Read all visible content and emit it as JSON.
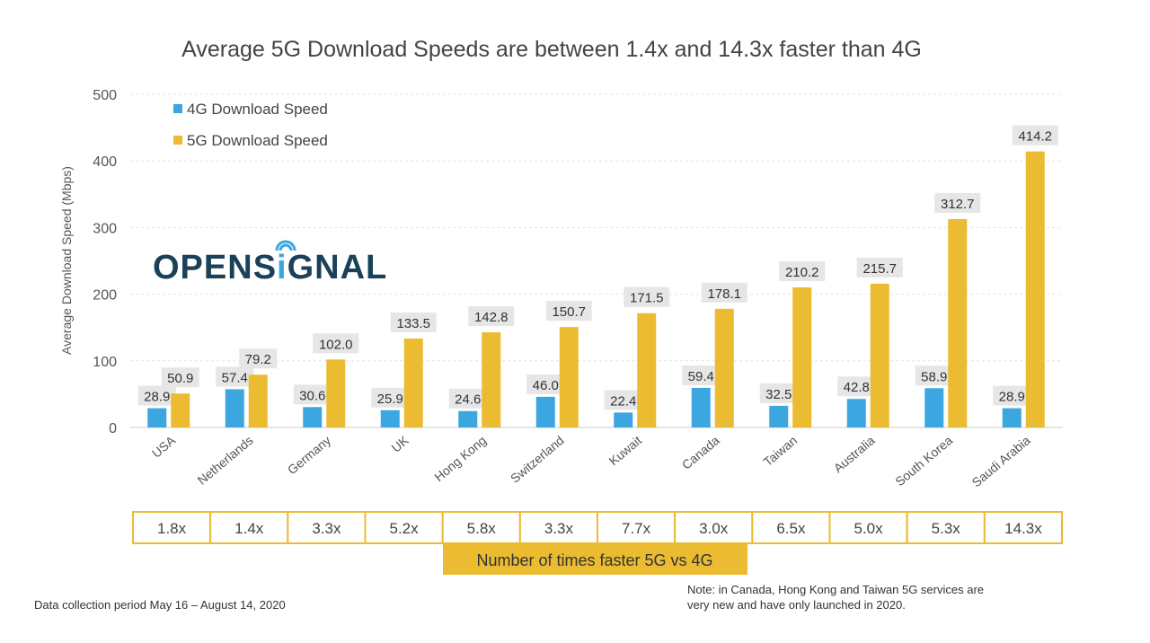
{
  "chart_data": {
    "type": "bar",
    "title": "Average 5G Download Speeds are between 1.4x and 14.3x faster than 4G",
    "ylabel": "Average Download Speed (Mbps)",
    "xlabel": "",
    "ylim": [
      0,
      500
    ],
    "yticks": [
      0,
      100,
      200,
      300,
      400,
      500
    ],
    "grid": true,
    "legend_placement": "top-left",
    "categories": [
      "USA",
      "Netherlands",
      "Germany",
      "UK",
      "Hong Kong",
      "Switzerland",
      "Kuwait",
      "Canada",
      "Taiwan",
      "Australia",
      "South Korea",
      "Saudi Arabia"
    ],
    "series": [
      {
        "name": "4G Download Speed",
        "color": "#3ba6df",
        "values": [
          28.9,
          57.4,
          30.6,
          25.9,
          24.6,
          46.0,
          22.4,
          59.4,
          32.5,
          42.8,
          58.9,
          28.9
        ]
      },
      {
        "name": "5G Download Speed",
        "color": "#ebbb32",
        "values": [
          50.9,
          79.2,
          102.0,
          133.5,
          142.8,
          150.7,
          171.5,
          178.1,
          210.2,
          215.7,
          312.7,
          414.2
        ]
      }
    ],
    "ratios": [
      "1.8x",
      "1.4x",
      "3.3x",
      "5.2x",
      "5.8x",
      "3.3x",
      "7.7x",
      "3.0x",
      "6.5x",
      "5.0x",
      "5.3x",
      "14.3x"
    ],
    "ratio_label": "Number of times faster 5G vs 4G"
  },
  "logo": {
    "text": "OPENSIGNAL"
  },
  "footer": {
    "left": "Data collection period May 16 – August 14, 2020",
    "note_line1": "Note: in Canada, Hong Kong and Taiwan 5G services are",
    "note_line2": "very new and have only launched in 2020."
  }
}
